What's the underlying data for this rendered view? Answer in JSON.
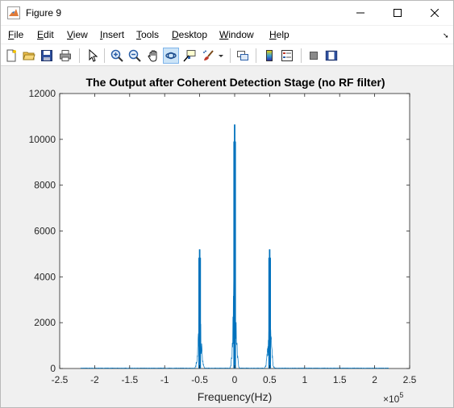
{
  "window": {
    "title": "Figure 9",
    "accent": "#0072bd"
  },
  "menu": {
    "items": [
      "File",
      "Edit",
      "View",
      "Insert",
      "Tools",
      "Desktop",
      "Window",
      "Help"
    ]
  },
  "toolbar": {
    "icons": [
      "new-figure-icon",
      "open-file-icon",
      "save-icon",
      "print-icon",
      "pointer-icon",
      "zoom-in-icon",
      "zoom-out-icon",
      "pan-icon",
      "rotate-3d-icon",
      "data-cursor-icon",
      "brush-icon",
      "brush-dropdown-icon",
      "link-plot-icon",
      "colorbar-icon",
      "legend-icon",
      "hide-plot-tools-icon",
      "show-plot-tools-icon"
    ]
  },
  "chart_data": {
    "type": "line",
    "title": "The Output after Coherent Detection Stage (no RF filter)",
    "xlabel": "Frequency(Hz)",
    "ylabel": "",
    "x_exponent_label": "×10",
    "x_exponent_power": "5",
    "xlim": [
      -2.5,
      2.5
    ],
    "ylim": [
      0,
      12000
    ],
    "x_ticks": [
      "-2.5",
      "-2",
      "-1.5",
      "-1",
      "-0.5",
      "0",
      "0.5",
      "1",
      "1.5",
      "2",
      "2.5"
    ],
    "y_ticks": [
      "0",
      "2000",
      "4000",
      "6000",
      "8000",
      "10000",
      "12000"
    ],
    "x_tick_values": [
      -2.5,
      -2,
      -1.5,
      -1,
      -0.5,
      0,
      0.5,
      1,
      1.5,
      2,
      2.5
    ],
    "y_tick_values": [
      0,
      2000,
      4000,
      6000,
      8000,
      10000,
      12000
    ],
    "series_color": "#0072bd",
    "data_range_x": [
      -2.2,
      2.2
    ],
    "peaks": [
      {
        "x": -0.5,
        "y": 5200
      },
      {
        "x": 0,
        "y": 10650
      },
      {
        "x": 0.5,
        "y": 5200
      }
    ],
    "grid": false
  }
}
